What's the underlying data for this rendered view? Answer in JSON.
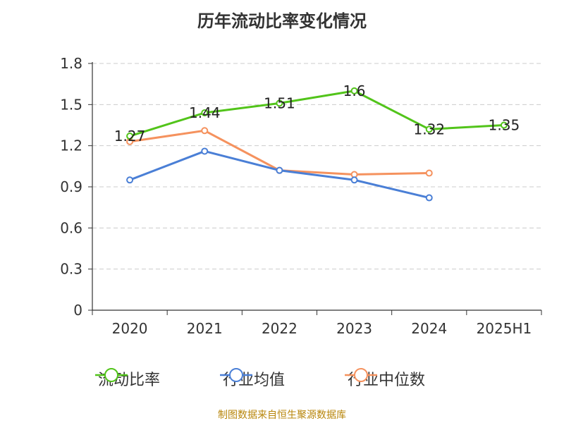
{
  "title": "历年流动比率变化情况",
  "source": "制图数据来自恒生聚源数据库",
  "chart_data": {
    "type": "line",
    "categories": [
      "2020",
      "2021",
      "2022",
      "2023",
      "2024",
      "2025H1"
    ],
    "ylim": [
      0,
      1.8
    ],
    "yticks": [
      "0",
      "0.3",
      "0.6",
      "0.9",
      "1.2",
      "1.5",
      "1.8"
    ],
    "grid": true,
    "legend_position": "bottom",
    "series": [
      {
        "name": "流动比率",
        "color": "#52c41a",
        "values": [
          1.27,
          1.44,
          1.51,
          1.6,
          1.32,
          1.35
        ],
        "labels": [
          "1.27",
          "1.44",
          "1.51",
          "1.6",
          "1.32",
          "1.35"
        ]
      },
      {
        "name": "行业均值",
        "color": "#4a7fd6",
        "values": [
          0.95,
          1.16,
          1.02,
          0.95,
          0.82,
          null
        ]
      },
      {
        "name": "行业中位数",
        "color": "#f5925e",
        "values": [
          1.23,
          1.31,
          1.02,
          0.99,
          1.0,
          null
        ]
      }
    ]
  }
}
